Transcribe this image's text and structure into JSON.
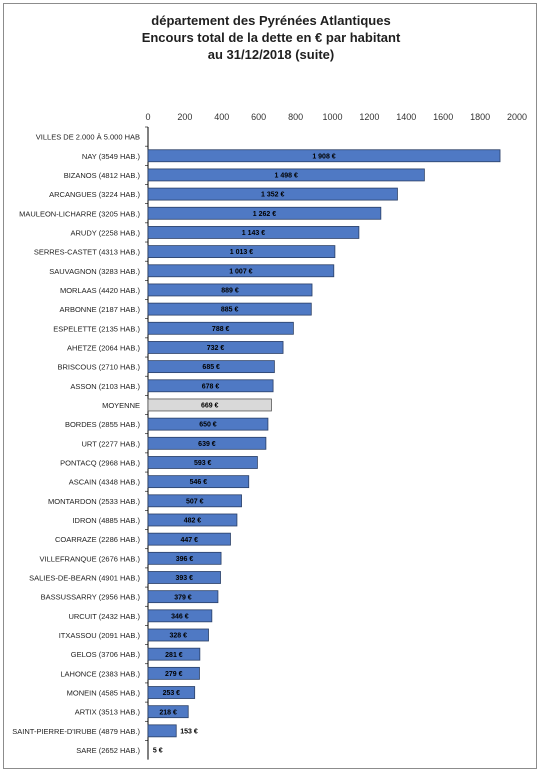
{
  "chart_data": {
    "type": "bar",
    "orientation": "horizontal",
    "title_lines": [
      "département des Pyrénées Atlantiques",
      "Encours total de la dette en € par habitant",
      "au 31/12/2018 (suite)"
    ],
    "xlim": [
      0,
      2000
    ],
    "x_ticks": [
      "0",
      "200",
      "400",
      "600",
      "800",
      "1000",
      "1200",
      "1400",
      "1600",
      "1800",
      "2000"
    ],
    "x_tick_values": [
      0,
      200,
      400,
      600,
      800,
      1000,
      1200,
      1400,
      1600,
      1800,
      2000
    ],
    "grid": false,
    "colors": {
      "bar": "#4f79c4",
      "bar_border": "#2a3f66",
      "average_bar": "#d9d9d9",
      "average_border": "#555555",
      "axis": "#000000"
    },
    "categories": [
      "VILLES DE 2.000 À 5.000 HAB",
      "NAY (3549 HAB.)",
      "BIZANOS (4812 HAB.)",
      "ARCANGUES (3224 HAB.)",
      "MAULEON-LICHARRE (3205 HAB.)",
      "ARUDY (2258 HAB.)",
      "SERRES-CASTET (4313 HAB.)",
      "SAUVAGNON (3283 HAB.)",
      "MORLAAS (4420 HAB.)",
      "ARBONNE (2187 HAB.)",
      "ESPELETTE (2135 HAB.)",
      "AHETZE (2064 HAB.)",
      "BRISCOUS (2710 HAB.)",
      "ASSON (2103 HAB.)",
      "MOYENNE",
      "BORDES (2855 HAB.)",
      "URT (2277 HAB.)",
      "PONTACQ (2968 HAB.)",
      "ASCAIN (4348 HAB.)",
      "MONTARDON (2533 HAB.)",
      "IDRON (4885 HAB.)",
      "COARRAZE (2286 HAB.)",
      "VILLEFRANQUE (2676 HAB.)",
      "SALIES-DE-BEARN (4901 HAB.)",
      "BASSUSSARRY (2956 HAB.)",
      "URCUIT (2432 HAB.)",
      "ITXASSOU (2091 HAB.)",
      "GELOS (3706 HAB.)",
      "LAHONCE (2383 HAB.)",
      "MONEIN (4585 HAB.)",
      "ARTIX (3513 HAB.)",
      "SAINT-PIERRE-D'IRUBE (4879 HAB.)",
      "SARE (2652 HAB.)"
    ],
    "values": [
      null,
      1908,
      1498,
      1352,
      1262,
      1143,
      1013,
      1007,
      889,
      885,
      788,
      732,
      685,
      678,
      669,
      650,
      639,
      593,
      546,
      507,
      482,
      447,
      396,
      393,
      379,
      346,
      328,
      281,
      279,
      253,
      218,
      153,
      5
    ],
    "labels": [
      "",
      "1 908 €",
      "1 498 €",
      "1 352 €",
      "1 262 €",
      "1 143 €",
      "1 013 €",
      "1 007 €",
      "889 €",
      "885 €",
      "788 €",
      "732 €",
      "685 €",
      "678 €",
      "669 €",
      "650 €",
      "639 €",
      "593 €",
      "546 €",
      "507 €",
      "482 €",
      "447 €",
      "396 €",
      "393 €",
      "379 €",
      "346 €",
      "328 €",
      "281 €",
      "279 €",
      "253 €",
      "218 €",
      "153 €",
      "5 €"
    ],
    "highlight": "MOYENNE"
  }
}
